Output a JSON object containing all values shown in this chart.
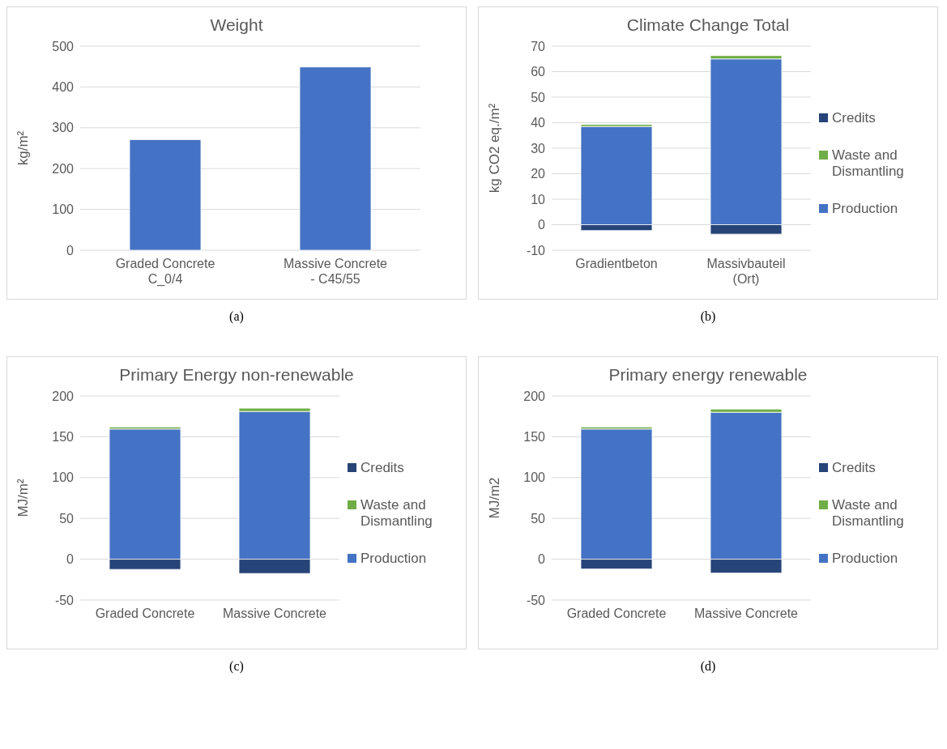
{
  "chart_data": [
    {
      "type": "bar",
      "title": "Weight",
      "ylabel": "kg/m²",
      "categories": [
        "Graded Concrete C_0/4",
        "Massive Concrete - C45/55"
      ],
      "values": [
        271,
        449
      ],
      "color": "#4472c4",
      "ylim": [
        0,
        500
      ],
      "yticks": [
        0,
        100,
        200,
        300,
        400,
        500
      ],
      "grid": "y",
      "annotations": [
        "(a)"
      ]
    },
    {
      "type": "bar",
      "title": "Climate Change Total",
      "ylabel": "kg CO2 eq./m²",
      "categories": [
        "Gradientbeton",
        "Massivbauteil (Ort)"
      ],
      "stacked": true,
      "series": [
        {
          "name": "Production",
          "color": "#4472c4",
          "values": [
            38.5,
            65
          ]
        },
        {
          "name": "Waste and Dismantling",
          "color": "#70ad47",
          "values": [
            0.8,
            1.3
          ]
        },
        {
          "name": "Credits",
          "color": "#264478",
          "values": [
            -2.3,
            -3.7
          ]
        }
      ],
      "ylim": [
        -10,
        70
      ],
      "yticks": [
        -10,
        0,
        10,
        20,
        30,
        40,
        50,
        60,
        70
      ],
      "grid": "y",
      "legend": "right",
      "annotations": [
        "(b)"
      ]
    },
    {
      "type": "bar",
      "title": "Primary Energy non-renewable",
      "ylabel": "MJ/m²",
      "categories": [
        "Graded Concrete",
        "Massive Concrete"
      ],
      "stacked": true,
      "series": [
        {
          "name": "Production",
          "color": "#4472c4",
          "values": [
            159.5,
            181
          ]
        },
        {
          "name": "Waste and Dismantling",
          "color": "#70ad47",
          "values": [
            2.5,
            4
          ]
        },
        {
          "name": "Credits",
          "color": "#264478",
          "values": [
            -12.5,
            -17.5
          ]
        }
      ],
      "ylim": [
        -50,
        200
      ],
      "yticks": [
        -50,
        0,
        50,
        100,
        150,
        200
      ],
      "grid": "y",
      "legend": "right",
      "annotations": [
        "(c)"
      ]
    },
    {
      "type": "bar",
      "title": "Primary energy renewable",
      "ylabel": "MJ/m2",
      "categories": [
        "Graded Concrete",
        "Massive Concrete"
      ],
      "stacked": true,
      "series": [
        {
          "name": "Production",
          "color": "#4472c4",
          "values": [
            159.5,
            180
          ]
        },
        {
          "name": "Waste and Dismantling",
          "color": "#70ad47",
          "values": [
            2.5,
            4
          ]
        },
        {
          "name": "Credits",
          "color": "#264478",
          "values": [
            -12,
            -17
          ]
        }
      ],
      "ylim": [
        -50,
        200
      ],
      "yticks": [
        -50,
        0,
        50,
        100,
        150,
        200
      ],
      "grid": "y",
      "legend": "right",
      "annotations": [
        "(d)"
      ]
    }
  ]
}
